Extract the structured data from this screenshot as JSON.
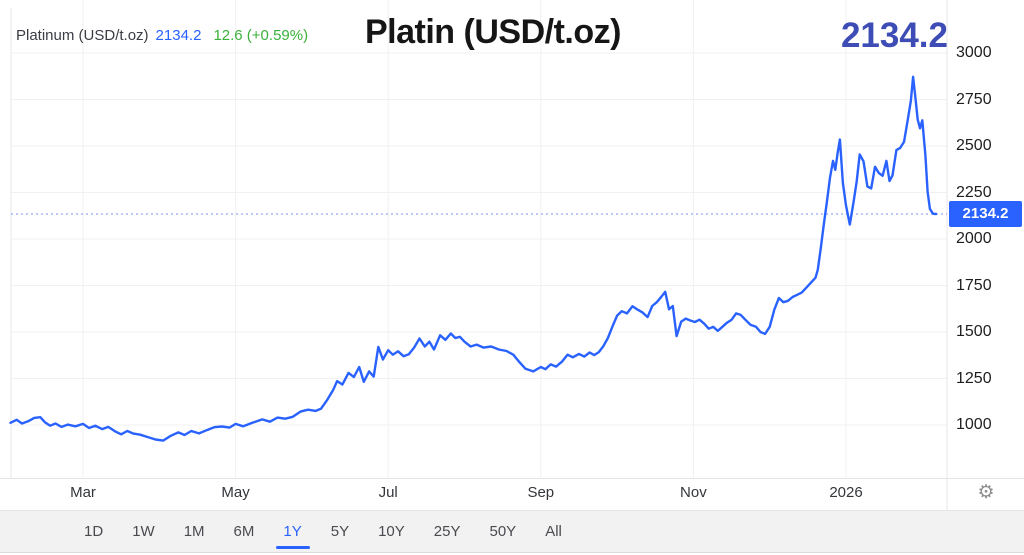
{
  "header": {
    "legend": {
      "instrument": "Platinum (USD/t.oz)",
      "value": "2134.2",
      "change": "12.6 (+0.59%)"
    },
    "title": "Platin (USD/t.oz)",
    "big_value": "2134.2"
  },
  "axis": {
    "current_price_label": "2134.2"
  },
  "toolbar": {
    "ranges": [
      "1D",
      "1W",
      "1M",
      "6M",
      "1Y",
      "5Y",
      "10Y",
      "25Y",
      "50Y",
      "All"
    ],
    "selected": "1Y"
  },
  "icons": {
    "settings_gear": "⚙"
  },
  "colors": {
    "line": "#2962ff",
    "dotted_line": "#7a93f2",
    "badge_bg": "#2962ff",
    "badge_text": "#ffffff",
    "big_value": "#3d4db5",
    "legend_value": "#2962ff",
    "legend_change": "#3ab03a",
    "grid": "#f1f1f1",
    "plot_border": "#e7e7e7"
  },
  "chart_data": {
    "type": "line",
    "title": "Platin (USD/t.oz)",
    "series_name": "Platinum (USD/t.oz)",
    "unit": "USD/t.oz",
    "last_value": 2134.2,
    "change": 12.6,
    "change_pct": "+0.59%",
    "range_selected": "1Y",
    "ylim": [
      700,
      3230
    ],
    "y_ticks": [
      3000,
      2750,
      2500,
      2250,
      2000,
      1750,
      1500,
      1250,
      1000
    ],
    "x_ticks": [
      {
        "label": "Mar",
        "m": 1
      },
      {
        "label": "May",
        "m": 3
      },
      {
        "label": "Jul",
        "m": 5
      },
      {
        "label": "Sep",
        "m": 7
      },
      {
        "label": "Nov",
        "m": 9
      },
      {
        "label": "2026",
        "m": 11
      }
    ],
    "x_unit": "months since Feb 2025 (0 = Feb 1 2025, 12 = Feb 1 2026)",
    "grid": true,
    "legend_position": "top-left",
    "points": [
      [
        0.05,
        1012
      ],
      [
        0.13,
        1028
      ],
      [
        0.2,
        1008
      ],
      [
        0.28,
        1020
      ],
      [
        0.36,
        1038
      ],
      [
        0.44,
        1042
      ],
      [
        0.5,
        1015
      ],
      [
        0.57,
        996
      ],
      [
        0.64,
        1008
      ],
      [
        0.72,
        990
      ],
      [
        0.8,
        1002
      ],
      [
        0.9,
        993
      ],
      [
        1.0,
        1006
      ],
      [
        1.08,
        984
      ],
      [
        1.16,
        996
      ],
      [
        1.25,
        978
      ],
      [
        1.33,
        990
      ],
      [
        1.42,
        966
      ],
      [
        1.5,
        950
      ],
      [
        1.58,
        968
      ],
      [
        1.66,
        954
      ],
      [
        1.75,
        948
      ],
      [
        1.85,
        935
      ],
      [
        1.95,
        922
      ],
      [
        2.05,
        916
      ],
      [
        2.15,
        942
      ],
      [
        2.25,
        960
      ],
      [
        2.33,
        946
      ],
      [
        2.42,
        968
      ],
      [
        2.52,
        955
      ],
      [
        2.62,
        972
      ],
      [
        2.72,
        988
      ],
      [
        2.82,
        992
      ],
      [
        2.92,
        986
      ],
      [
        3.0,
        1006
      ],
      [
        3.1,
        993
      ],
      [
        3.22,
        1012
      ],
      [
        3.35,
        1030
      ],
      [
        3.45,
        1018
      ],
      [
        3.55,
        1040
      ],
      [
        3.65,
        1034
      ],
      [
        3.75,
        1044
      ],
      [
        3.85,
        1072
      ],
      [
        3.95,
        1082
      ],
      [
        4.05,
        1076
      ],
      [
        4.12,
        1088
      ],
      [
        4.2,
        1135
      ],
      [
        4.28,
        1190
      ],
      [
        4.33,
        1236
      ],
      [
        4.4,
        1218
      ],
      [
        4.48,
        1280
      ],
      [
        4.55,
        1258
      ],
      [
        4.62,
        1312
      ],
      [
        4.68,
        1232
      ],
      [
        4.75,
        1288
      ],
      [
        4.81,
        1260
      ],
      [
        4.87,
        1420
      ],
      [
        4.93,
        1352
      ],
      [
        5.0,
        1402
      ],
      [
        5.06,
        1378
      ],
      [
        5.13,
        1396
      ],
      [
        5.2,
        1370
      ],
      [
        5.27,
        1380
      ],
      [
        5.34,
        1416
      ],
      [
        5.41,
        1465
      ],
      [
        5.48,
        1422
      ],
      [
        5.54,
        1448
      ],
      [
        5.6,
        1406
      ],
      [
        5.68,
        1482
      ],
      [
        5.75,
        1458
      ],
      [
        5.82,
        1492
      ],
      [
        5.88,
        1468
      ],
      [
        5.94,
        1474
      ],
      [
        6.0,
        1448
      ],
      [
        6.08,
        1422
      ],
      [
        6.16,
        1432
      ],
      [
        6.25,
        1416
      ],
      [
        6.35,
        1422
      ],
      [
        6.45,
        1406
      ],
      [
        6.55,
        1398
      ],
      [
        6.64,
        1378
      ],
      [
        6.72,
        1338
      ],
      [
        6.8,
        1302
      ],
      [
        6.9,
        1288
      ],
      [
        7.0,
        1312
      ],
      [
        7.06,
        1300
      ],
      [
        7.13,
        1326
      ],
      [
        7.2,
        1314
      ],
      [
        7.28,
        1342
      ],
      [
        7.35,
        1378
      ],
      [
        7.42,
        1364
      ],
      [
        7.5,
        1382
      ],
      [
        7.57,
        1368
      ],
      [
        7.64,
        1390
      ],
      [
        7.7,
        1376
      ],
      [
        7.76,
        1392
      ],
      [
        7.82,
        1424
      ],
      [
        7.88,
        1468
      ],
      [
        7.94,
        1530
      ],
      [
        8.0,
        1588
      ],
      [
        8.06,
        1612
      ],
      [
        8.13,
        1600
      ],
      [
        8.2,
        1638
      ],
      [
        8.27,
        1620
      ],
      [
        8.33,
        1606
      ],
      [
        8.4,
        1580
      ],
      [
        8.46,
        1640
      ],
      [
        8.52,
        1660
      ],
      [
        8.58,
        1690
      ],
      [
        8.63,
        1716
      ],
      [
        8.68,
        1622
      ],
      [
        8.73,
        1640
      ],
      [
        8.78,
        1478
      ],
      [
        8.84,
        1556
      ],
      [
        8.9,
        1572
      ],
      [
        8.96,
        1562
      ],
      [
        9.02,
        1554
      ],
      [
        9.08,
        1566
      ],
      [
        9.14,
        1545
      ],
      [
        9.2,
        1518
      ],
      [
        9.26,
        1528
      ],
      [
        9.32,
        1506
      ],
      [
        9.38,
        1528
      ],
      [
        9.44,
        1550
      ],
      [
        9.5,
        1566
      ],
      [
        9.56,
        1600
      ],
      [
        9.62,
        1592
      ],
      [
        9.68,
        1566
      ],
      [
        9.75,
        1538
      ],
      [
        9.82,
        1528
      ],
      [
        9.88,
        1500
      ],
      [
        9.94,
        1490
      ],
      [
        10.0,
        1528
      ],
      [
        10.06,
        1620
      ],
      [
        10.12,
        1683
      ],
      [
        10.18,
        1660
      ],
      [
        10.24,
        1668
      ],
      [
        10.3,
        1688
      ],
      [
        10.36,
        1700
      ],
      [
        10.42,
        1712
      ],
      [
        10.48,
        1738
      ],
      [
        10.54,
        1765
      ],
      [
        10.6,
        1792
      ],
      [
        10.63,
        1835
      ],
      [
        10.67,
        1952
      ],
      [
        10.71,
        2082
      ],
      [
        10.75,
        2200
      ],
      [
        10.79,
        2330
      ],
      [
        10.83,
        2420
      ],
      [
        10.86,
        2372
      ],
      [
        10.89,
        2462
      ],
      [
        10.92,
        2535
      ],
      [
        10.96,
        2300
      ],
      [
        11.0,
        2180
      ],
      [
        11.05,
        2078
      ],
      [
        11.1,
        2200
      ],
      [
        11.14,
        2310
      ],
      [
        11.18,
        2455
      ],
      [
        11.23,
        2418
      ],
      [
        11.28,
        2282
      ],
      [
        11.33,
        2272
      ],
      [
        11.38,
        2388
      ],
      [
        11.43,
        2355
      ],
      [
        11.48,
        2340
      ],
      [
        11.53,
        2420
      ],
      [
        11.57,
        2312
      ],
      [
        11.61,
        2342
      ],
      [
        11.66,
        2478
      ],
      [
        11.71,
        2490
      ],
      [
        11.76,
        2522
      ],
      [
        11.81,
        2642
      ],
      [
        11.85,
        2745
      ],
      [
        11.88,
        2872
      ],
      [
        11.91,
        2760
      ],
      [
        11.94,
        2642
      ],
      [
        11.97,
        2595
      ],
      [
        12.0,
        2638
      ],
      [
        12.04,
        2450
      ],
      [
        12.07,
        2255
      ],
      [
        12.1,
        2162
      ],
      [
        12.14,
        2136
      ],
      [
        12.18,
        2134.2
      ]
    ]
  }
}
